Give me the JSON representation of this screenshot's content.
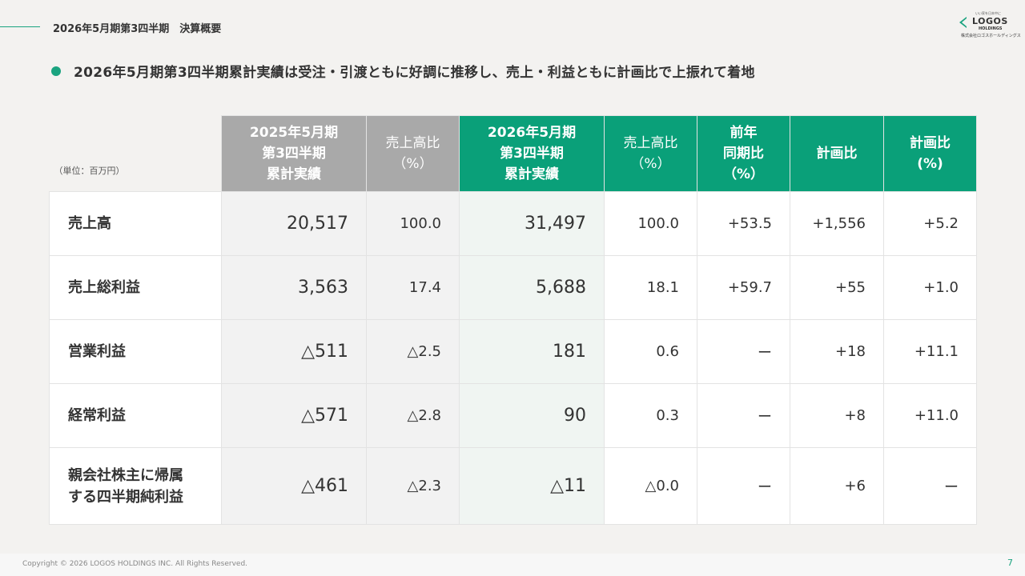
{
  "header": {
    "section_title": "2026年5月期第3四半期　決算概要",
    "logo": {
      "tagline": "いい家を日本中に",
      "name": "LOGOS",
      "sub": "HOLDINGS",
      "corp": "株式会社ロゴスホールディングス"
    }
  },
  "headline": "2026年5月期第3四半期累計実績は受注・引渡ともに好調に推移し、売上・利益ともに計画比で上振れて着地",
  "table": {
    "unit": "（単位：百万円）",
    "columns": [
      "2025年5月期\n第3四半期\n累計実績",
      "売上高比\n（%）",
      "2026年5月期\n第3四半期\n累計実績",
      "売上高比\n（%）",
      "前年\n同期比\n（%）",
      "計画比",
      "計画比\n(%)"
    ],
    "rows": [
      {
        "label": "売上高",
        "prev": "20,517",
        "prev_ratio": "100.0",
        "cur": "31,497",
        "cur_ratio": "100.0",
        "yoy": "+53.5",
        "vs_plan": "+1,556",
        "vs_plan_pct": "+5.2"
      },
      {
        "label": "売上総利益",
        "prev": "3,563",
        "prev_ratio": "17.4",
        "cur": "5,688",
        "cur_ratio": "18.1",
        "yoy": "+59.7",
        "vs_plan": "+55",
        "vs_plan_pct": "+1.0"
      },
      {
        "label": "営業利益",
        "prev": "△511",
        "prev_ratio": "△2.5",
        "cur": "181",
        "cur_ratio": "0.6",
        "yoy": "ー",
        "vs_plan": "+18",
        "vs_plan_pct": "+11.1"
      },
      {
        "label": "経常利益",
        "prev": "△571",
        "prev_ratio": "△2.8",
        "cur": "90",
        "cur_ratio": "0.3",
        "yoy": "ー",
        "vs_plan": "+8",
        "vs_plan_pct": "+11.0"
      },
      {
        "label": "親会社株主に帰属\nする四半期純利益",
        "prev": "△461",
        "prev_ratio": "△2.3",
        "cur": "△11",
        "cur_ratio": "△0.0",
        "yoy": "ー",
        "vs_plan": "+6",
        "vs_plan_pct": "ー"
      }
    ]
  },
  "footer": {
    "copyright": "Copyright © 2026 LOGOS HOLDINGS INC. All Rights Reserved.",
    "page_number": "7"
  },
  "colors": {
    "accent": "#0aa079",
    "gray_header": "#a9a9a9"
  }
}
